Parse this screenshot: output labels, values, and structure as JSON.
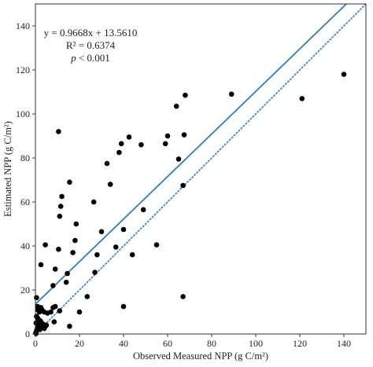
{
  "chart_data": {
    "type": "scatter",
    "xlabel": "Observed Measured NPP (g C/m²)",
    "ylabel": "Estimated NPP (g C/m²)",
    "xlim": [
      0,
      150
    ],
    "ylim": [
      0,
      150
    ],
    "xticks": [
      0,
      20,
      40,
      60,
      80,
      100,
      120,
      140
    ],
    "yticks": [
      0,
      20,
      40,
      60,
      80,
      100,
      120,
      140
    ],
    "grid": false,
    "annotations": {
      "equation": "y = 0.9668x + 13.5610",
      "r2": "R² = 0.6374",
      "p_italic": "p",
      "p_rest": " < 0.001"
    },
    "regression_line": {
      "slope": 0.9668,
      "intercept": 13.561,
      "style": "solid",
      "color": "#2a7fc1"
    },
    "identity_line": {
      "slope": 1,
      "intercept": 0,
      "style": "dotted",
      "color": "#2a7fc1"
    },
    "point_color": "#000000",
    "points": [
      [
        0.2,
        0.5
      ],
      [
        0.5,
        1.5
      ],
      [
        0.8,
        2.5
      ],
      [
        1.0,
        3.5
      ],
      [
        0.3,
        5.0
      ],
      [
        1.5,
        4.0
      ],
      [
        2.0,
        2.0
      ],
      [
        2.5,
        5.5
      ],
      [
        3.0,
        3.0
      ],
      [
        1.2,
        7.0
      ],
      [
        2.2,
        6.0
      ],
      [
        3.5,
        4.5
      ],
      [
        4.0,
        2.5
      ],
      [
        4.5,
        3.5
      ],
      [
        5.0,
        4.0
      ],
      [
        1.8,
        10.0
      ],
      [
        3.0,
        11.0
      ],
      [
        4.0,
        10.0
      ],
      [
        5.5,
        9.5
      ],
      [
        2.5,
        12.0
      ],
      [
        0.5,
        16.5
      ],
      [
        1.0,
        12.5
      ],
      [
        0.3,
        0.2
      ],
      [
        0.5,
        8.0
      ],
      [
        9.0,
        12.5
      ],
      [
        8.0,
        12.0
      ],
      [
        8.5,
        5.5
      ],
      [
        11.0,
        10.5
      ],
      [
        7.0,
        10.0
      ],
      [
        1.0,
        11.0
      ],
      [
        2.5,
        31.5
      ],
      [
        4.5,
        40.5
      ],
      [
        8.0,
        22.0
      ],
      [
        9.0,
        29.5
      ],
      [
        10.5,
        38.5
      ],
      [
        11.0,
        53.5
      ],
      [
        11.5,
        58.0
      ],
      [
        12.0,
        62.5
      ],
      [
        10.5,
        92.0
      ],
      [
        14.0,
        23.5
      ],
      [
        14.5,
        27.5
      ],
      [
        15.5,
        69.0
      ],
      [
        17.0,
        37.0
      ],
      [
        18.0,
        42.5
      ],
      [
        18.5,
        50.0
      ],
      [
        15.5,
        3.5
      ],
      [
        20.0,
        10.0
      ],
      [
        23.5,
        17.0
      ],
      [
        26.5,
        60.0
      ],
      [
        27.0,
        28.0
      ],
      [
        28.0,
        36.0
      ],
      [
        30.0,
        46.5
      ],
      [
        32.5,
        77.5
      ],
      [
        34.0,
        68.0
      ],
      [
        36.5,
        39.5
      ],
      [
        38.0,
        82.5
      ],
      [
        39.0,
        86.5
      ],
      [
        40.0,
        47.5
      ],
      [
        40.0,
        12.5
      ],
      [
        42.5,
        89.5
      ],
      [
        44.0,
        36.0
      ],
      [
        48.0,
        86.0
      ],
      [
        49.0,
        56.5
      ],
      [
        55.0,
        40.5
      ],
      [
        59.0,
        86.5
      ],
      [
        60.0,
        90.0
      ],
      [
        64.0,
        103.5
      ],
      [
        65.0,
        79.5
      ],
      [
        67.0,
        67.5
      ],
      [
        67.5,
        90.5
      ],
      [
        68.0,
        108.5
      ],
      [
        67.0,
        17.0
      ],
      [
        89.0,
        109.0
      ],
      [
        121.0,
        107.0
      ],
      [
        140.0,
        118.0
      ]
    ]
  }
}
